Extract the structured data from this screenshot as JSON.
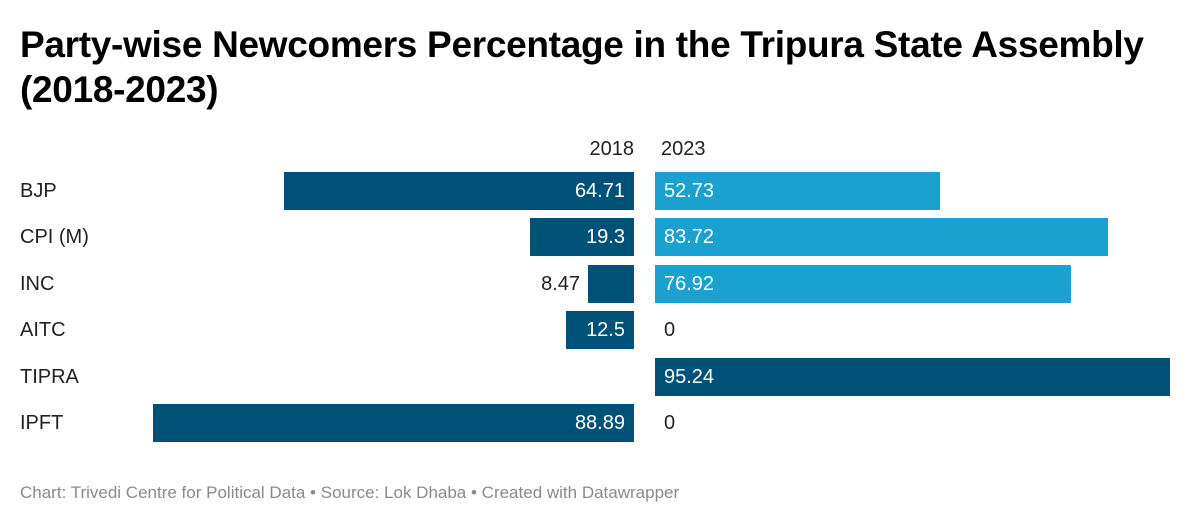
{
  "title": "Party-wise Newcomers Percentage in the Tripura State Assembly (2018-2023)",
  "footer": "Chart: Trivedi Centre for Political Data • Source: Lok Dhaba • Created with Datawrapper",
  "colors": {
    "dark": "#005178",
    "light": "#1aa1cf"
  },
  "chart_data": {
    "type": "bar",
    "orientation": "horizontal-split",
    "title": "Party-wise Newcomers Percentage in the Tripura State Assembly (2018-2023)",
    "xlabel": "",
    "ylabel": "",
    "xlim": [
      0,
      100
    ],
    "grid": false,
    "categories": [
      "BJP",
      "CPI (M)",
      "INC",
      "AITC",
      "TIPRA",
      "IPFT"
    ],
    "series": [
      {
        "name": "2018",
        "values": [
          64.71,
          19.3,
          8.47,
          12.5,
          null,
          88.89
        ],
        "labels": [
          "64.71",
          "19.3",
          "8.47",
          "12.5",
          "",
          "88.89"
        ],
        "colors": [
          "#005178",
          "#005178",
          "#005178",
          "#005178",
          "#005178",
          "#005178"
        ]
      },
      {
        "name": "2023",
        "values": [
          52.73,
          83.72,
          76.92,
          0,
          95.24,
          0
        ],
        "labels": [
          "52.73",
          "83.72",
          "76.92",
          "0",
          "95.24",
          "0"
        ],
        "colors": [
          "#1aa1cf",
          "#1aa1cf",
          "#1aa1cf",
          "#1aa1cf",
          "#005178",
          "#1aa1cf"
        ]
      }
    ]
  }
}
